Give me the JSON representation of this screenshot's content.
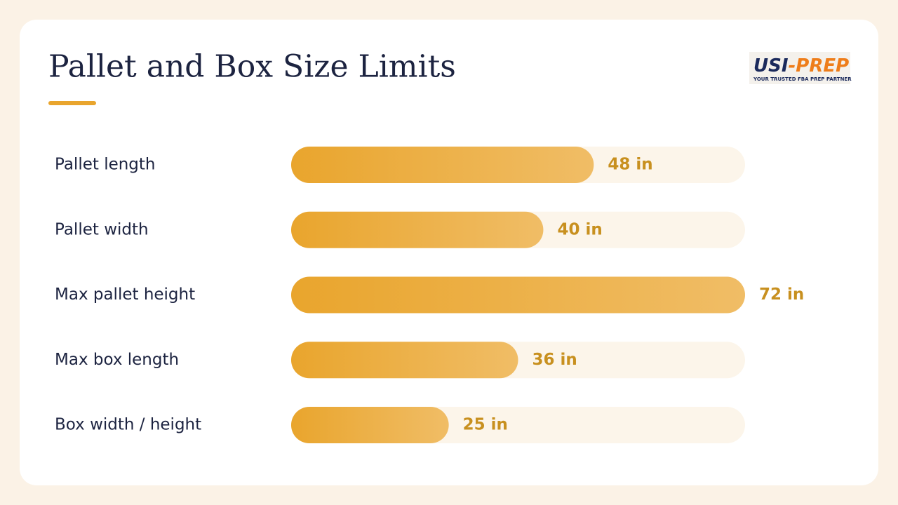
{
  "chart_data": {
    "type": "bar",
    "orientation": "horizontal",
    "title": "Pallet and Box Size Limits",
    "logo": {
      "primary": "USI",
      "accent": "-PREP",
      "tagline": "YOUR TRUSTED FBA PREP PARTNER"
    },
    "categories": [
      "Pallet length",
      "Pallet width",
      "Max pallet height",
      "Max box length",
      "Box width / height"
    ],
    "values": [
      48,
      40,
      72,
      36,
      25
    ],
    "value_labels": [
      "48 in",
      "40 in",
      "72 in",
      "36 in",
      "25 in"
    ],
    "color": "#eaa62f",
    "xlim": [
      0,
      72
    ]
  }
}
